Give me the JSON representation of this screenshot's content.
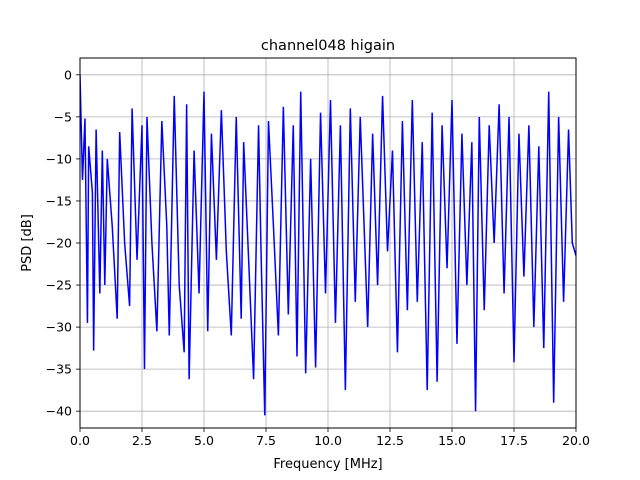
{
  "chart_data": {
    "type": "line",
    "title": "channel048 higain",
    "xlabel": "Frequency [MHz]",
    "ylabel": "PSD [dB]",
    "xlim": [
      0,
      20
    ],
    "ylim": [
      -42,
      2
    ],
    "grid": true,
    "xticks": [
      0.0,
      2.5,
      5.0,
      7.5,
      10.0,
      12.5,
      15.0,
      17.5,
      20.0
    ],
    "xtick_labels": [
      "0.0",
      "2.5",
      "5.0",
      "7.5",
      "10.0",
      "12.5",
      "15.0",
      "17.5",
      "20.0"
    ],
    "yticks": [
      0,
      -5,
      -10,
      -15,
      -20,
      -25,
      -30,
      -35,
      -40
    ],
    "ytick_labels": [
      "0",
      "−5",
      "−10",
      "−15",
      "−20",
      "−25",
      "−30",
      "−35",
      "−40"
    ],
    "series": [
      {
        "color": "#0000ff",
        "points": [
          [
            0.0,
            0.0
          ],
          [
            0.1,
            -12.5
          ],
          [
            0.2,
            -5.2
          ],
          [
            0.3,
            -29.5
          ],
          [
            0.35,
            -8.5
          ],
          [
            0.5,
            -14
          ],
          [
            0.55,
            -32.8
          ],
          [
            0.65,
            -6.5
          ],
          [
            0.8,
            -26
          ],
          [
            0.9,
            -9
          ],
          [
            1.0,
            -25
          ],
          [
            1.1,
            -10
          ],
          [
            1.3,
            -18
          ],
          [
            1.5,
            -29
          ],
          [
            1.6,
            -6.8
          ],
          [
            1.8,
            -20
          ],
          [
            2.0,
            -27.5
          ],
          [
            2.1,
            -4
          ],
          [
            2.3,
            -22
          ],
          [
            2.5,
            -6
          ],
          [
            2.6,
            -35
          ],
          [
            2.7,
            -5
          ],
          [
            2.9,
            -20
          ],
          [
            3.1,
            -30.5
          ],
          [
            3.3,
            -5.5
          ],
          [
            3.5,
            -18
          ],
          [
            3.6,
            -31
          ],
          [
            3.8,
            -2.5
          ],
          [
            4.0,
            -25
          ],
          [
            4.2,
            -33
          ],
          [
            4.3,
            -3.5
          ],
          [
            4.4,
            -36.2
          ],
          [
            4.6,
            -9
          ],
          [
            4.8,
            -26
          ],
          [
            5.0,
            -2
          ],
          [
            5.15,
            -30.5
          ],
          [
            5.3,
            -7
          ],
          [
            5.5,
            -22
          ],
          [
            5.7,
            -4.2
          ],
          [
            5.9,
            -21
          ],
          [
            6.1,
            -31
          ],
          [
            6.3,
            -5
          ],
          [
            6.5,
            -29
          ],
          [
            6.6,
            -8
          ],
          [
            6.8,
            -22
          ],
          [
            7.0,
            -36.2
          ],
          [
            7.2,
            -6
          ],
          [
            7.3,
            -21
          ],
          [
            7.45,
            -40.5
          ],
          [
            7.6,
            -5.5
          ],
          [
            7.8,
            -18
          ],
          [
            8.0,
            -31
          ],
          [
            8.2,
            -3.8
          ],
          [
            8.4,
            -28.5
          ],
          [
            8.6,
            -6
          ],
          [
            8.75,
            -33.5
          ],
          [
            8.9,
            -2
          ],
          [
            9.1,
            -35.5
          ],
          [
            9.3,
            -10
          ],
          [
            9.5,
            -34.8
          ],
          [
            9.7,
            -4.5
          ],
          [
            9.9,
            -26
          ],
          [
            10.1,
            -3
          ],
          [
            10.3,
            -29.5
          ],
          [
            10.5,
            -6
          ],
          [
            10.7,
            -37.5
          ],
          [
            10.9,
            -4
          ],
          [
            11.1,
            -27
          ],
          [
            11.3,
            -5
          ],
          [
            11.6,
            -30
          ],
          [
            11.8,
            -7
          ],
          [
            12.0,
            -25
          ],
          [
            12.2,
            -2.5
          ],
          [
            12.4,
            -21
          ],
          [
            12.6,
            -9
          ],
          [
            12.8,
            -33
          ],
          [
            13.0,
            -5.5
          ],
          [
            13.2,
            -28
          ],
          [
            13.4,
            -3
          ],
          [
            13.6,
            -27
          ],
          [
            13.8,
            -8
          ],
          [
            14.0,
            -37.5
          ],
          [
            14.2,
            -4.5
          ],
          [
            14.4,
            -36.5
          ],
          [
            14.6,
            -6
          ],
          [
            14.8,
            -23
          ],
          [
            15.0,
            -3
          ],
          [
            15.2,
            -32
          ],
          [
            15.4,
            -7
          ],
          [
            15.6,
            -25
          ],
          [
            15.8,
            -8
          ],
          [
            15.95,
            -40
          ],
          [
            16.1,
            -5
          ],
          [
            16.3,
            -28
          ],
          [
            16.5,
            -6
          ],
          [
            16.7,
            -20
          ],
          [
            16.9,
            -3.5
          ],
          [
            17.1,
            -26
          ],
          [
            17.3,
            -5
          ],
          [
            17.5,
            -34.2
          ],
          [
            17.7,
            -7
          ],
          [
            17.9,
            -24
          ],
          [
            18.1,
            -6
          ],
          [
            18.3,
            -30
          ],
          [
            18.5,
            -8.5
          ],
          [
            18.7,
            -32.5
          ],
          [
            18.9,
            -2
          ],
          [
            19.1,
            -39
          ],
          [
            19.3,
            -5
          ],
          [
            19.5,
            -27
          ],
          [
            19.7,
            -6.5
          ],
          [
            19.85,
            -20
          ],
          [
            20.0,
            -21.5
          ]
        ]
      }
    ]
  }
}
